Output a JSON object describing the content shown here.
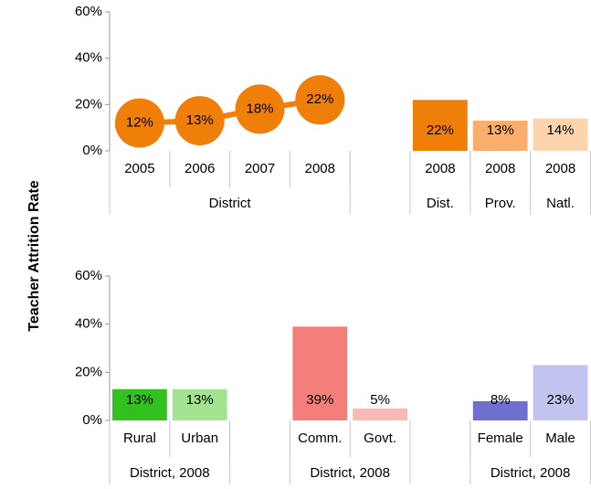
{
  "chart_data": [
    {
      "type": "combo",
      "ylabel": "Teacher Attrition Rate",
      "categories": [
        "2005",
        "2006",
        "2007",
        "2008",
        null,
        "2008",
        "2008",
        "2008"
      ],
      "groups": [
        {
          "label": "District",
          "size": 4
        },
        {
          "label": null,
          "size": 1
        },
        {
          "label": "Dist.",
          "size": 1
        },
        {
          "label": "Prov.",
          "size": 1
        },
        {
          "label": "Natl.",
          "size": 1
        }
      ],
      "series": [
        {
          "type": "line",
          "color": "#f07f09",
          "values": [
            12,
            13,
            18,
            22,
            null,
            null,
            null,
            null
          ],
          "value_labels": [
            "12%",
            "13%",
            "18%",
            "22%",
            null,
            null,
            null,
            null
          ]
        },
        {
          "type": "bar",
          "colors": [
            null,
            null,
            null,
            null,
            null,
            "#f07f09",
            "#f9ae6b",
            "#fcd5ac"
          ],
          "values": [
            null,
            null,
            null,
            null,
            null,
            22,
            13,
            14
          ],
          "value_labels": [
            null,
            null,
            null,
            null,
            null,
            "22%",
            "13%",
            "14%"
          ]
        }
      ],
      "ylim": [
        0,
        60
      ],
      "yticks": [
        {
          "value": 0,
          "label": "0%"
        },
        {
          "value": 20,
          "label": "20%"
        },
        {
          "value": 40,
          "label": "40%"
        },
        {
          "value": 60,
          "label": "60%"
        }
      ],
      "grid": false
    },
    {
      "type": "combo",
      "categories": [
        "Rural",
        "Urban",
        null,
        "Comm.",
        "Govt.",
        null,
        "Female",
        "Male"
      ],
      "groups": [
        {
          "label": "District, 2008",
          "size": 2
        },
        {
          "label": null,
          "size": 1
        },
        {
          "label": "District, 2008",
          "size": 2
        },
        {
          "label": null,
          "size": 1
        },
        {
          "label": "District, 2008",
          "size": 2
        }
      ],
      "series": [
        {
          "type": "bar",
          "colors": [
            "#33c11f",
            "#a4e38f",
            null,
            "#f47f7a",
            "#f8b8b4",
            null,
            "#6f6fcf",
            "#c3c3ef"
          ],
          "values": [
            13,
            13,
            null,
            39,
            5,
            null,
            8,
            23
          ],
          "value_labels": [
            "13%",
            "13%",
            null,
            "39%",
            "5%",
            null,
            "8%",
            "23%"
          ]
        }
      ],
      "ylim": [
        0,
        60
      ],
      "yticks": [
        {
          "value": 0,
          "label": "0%"
        },
        {
          "value": 20,
          "label": "20%"
        },
        {
          "value": 40,
          "label": "40%"
        },
        {
          "value": 60,
          "label": "60%"
        }
      ],
      "grid": false
    }
  ]
}
